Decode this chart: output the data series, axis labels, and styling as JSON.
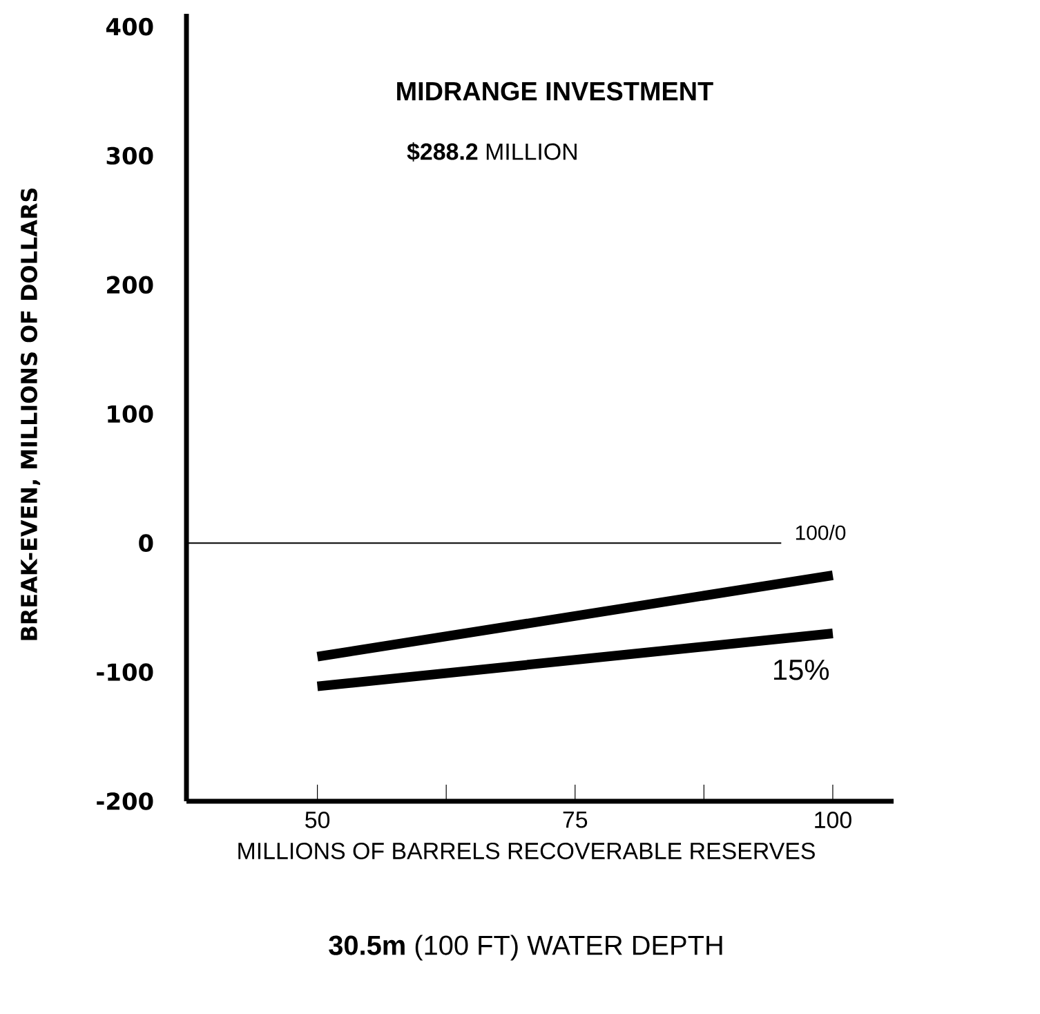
{
  "chart_data": {
    "type": "line",
    "title": "MIDRANGE INVESTMENT",
    "subtitle": "**$288.2** MILLION",
    "xlabel": "MILLIONS OF BARRELS RECOVERABLE RESERVES",
    "ylabel": "BREAK-EVEN, MILLIONS OF DOLLARS",
    "annotations": [
      "**30.5m** (100 FT) WATER DEPTH"
    ],
    "x": [
      50,
      100
    ],
    "series": [
      {
        "color": "#000000",
        "values": [
          -88,
          -25
        ]
      },
      {
        "name": "15%",
        "color": "#000000",
        "values": [
          -111,
          -70
        ]
      }
    ],
    "ref_lines": [
      {
        "axis": "y",
        "value": 0,
        "label": "100/0",
        "color": "#000000"
      }
    ],
    "xlim": [
      37.3,
      105.9
    ],
    "ylim": [
      -200,
      410
    ],
    "xticks": [
      50,
      {
        "value": 62.5,
        "label": null
      },
      75,
      {
        "value": 87.5,
        "label": null
      },
      100
    ],
    "yticks": [
      -200,
      -100,
      0,
      100,
      200,
      300,
      400
    ],
    "grid": false,
    "legend": false,
    "marker": "none",
    "line_style": "solid"
  }
}
